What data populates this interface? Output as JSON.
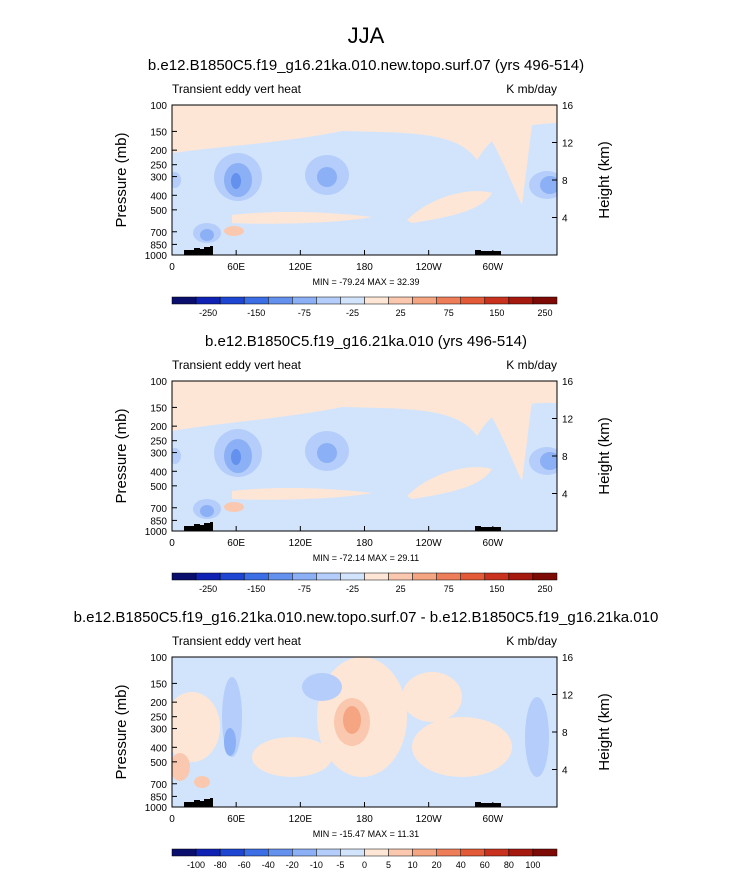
{
  "figure": {
    "title": "JJA"
  },
  "chart_data": [
    {
      "type": "heatmap",
      "title": "b.e12.B1850C5.f19_g16.21ka.010.new.topo.surf.07 (yrs 496-514)",
      "left_label": "Transient eddy vert heat",
      "right_label": "K mb/day",
      "ylabel": "Pressure (mb)",
      "ylabel_right": "Height (km)",
      "x_ticks": [
        "0",
        "60E",
        "120E",
        "180",
        "120W",
        "60W"
      ],
      "y_ticks": [
        "100",
        "150",
        "200",
        "250",
        "300",
        "400",
        "500",
        "700",
        "850",
        "1000"
      ],
      "y2_ticks": [
        "16",
        "12",
        "8",
        "4"
      ],
      "stats": "MIN = -79.24  MAX =  32.39",
      "colorbar_labels": [
        "-250",
        "-150",
        "-75",
        "-25",
        "25",
        "75",
        "150",
        "250"
      ],
      "colorbar_levels": [
        -300,
        -250,
        -200,
        -150,
        -100,
        -75,
        -50,
        -25,
        0,
        25,
        50,
        75,
        100,
        150,
        200,
        250,
        300
      ],
      "ylim": [
        1000,
        100
      ],
      "xlim": [
        0,
        360
      ]
    },
    {
      "type": "heatmap",
      "title": "b.e12.B1850C5.f19_g16.21ka.010 (yrs 496-514)",
      "left_label": "Transient eddy vert heat",
      "right_label": "K mb/day",
      "ylabel": "Pressure (mb)",
      "ylabel_right": "Height (km)",
      "x_ticks": [
        "0",
        "60E",
        "120E",
        "180",
        "120W",
        "60W"
      ],
      "y_ticks": [
        "100",
        "150",
        "200",
        "250",
        "300",
        "400",
        "500",
        "700",
        "850",
        "1000"
      ],
      "y2_ticks": [
        "16",
        "12",
        "8",
        "4"
      ],
      "stats": "MIN = -72.14  MAX =  29.11",
      "colorbar_labels": [
        "-250",
        "-150",
        "-75",
        "-25",
        "25",
        "75",
        "150",
        "250"
      ],
      "colorbar_levels": [
        -300,
        -250,
        -200,
        -150,
        -100,
        -75,
        -50,
        -25,
        0,
        25,
        50,
        75,
        100,
        150,
        200,
        250,
        300
      ],
      "ylim": [
        1000,
        100
      ],
      "xlim": [
        0,
        360
      ]
    },
    {
      "type": "heatmap",
      "title": "b.e12.B1850C5.f19_g16.21ka.010.new.topo.surf.07 - b.e12.B1850C5.f19_g16.21ka.010",
      "left_label": "Transient eddy vert heat",
      "right_label": "K mb/day",
      "ylabel": "Pressure (mb)",
      "ylabel_right": "Height (km)",
      "x_ticks": [
        "0",
        "60E",
        "120E",
        "180",
        "120W",
        "60W"
      ],
      "y_ticks": [
        "100",
        "150",
        "200",
        "250",
        "300",
        "400",
        "500",
        "700",
        "850",
        "1000"
      ],
      "y2_ticks": [
        "16",
        "12",
        "8",
        "4"
      ],
      "stats": "MIN = -15.47  MAX = 11.31",
      "colorbar_labels": [
        "-100",
        "-80",
        "-60",
        "-40",
        "-20",
        "-10",
        "-5",
        "0",
        "5",
        "10",
        "20",
        "40",
        "60",
        "80",
        "100"
      ],
      "colorbar_levels": [
        -100,
        -80,
        -60,
        -40,
        -20,
        -10,
        -5,
        0,
        5,
        10,
        20,
        40,
        60,
        80,
        100
      ],
      "ylim": [
        1000,
        100
      ],
      "xlim": [
        0,
        360
      ]
    }
  ],
  "colors": {
    "palette": [
      "#0a0f6e",
      "#0f22b4",
      "#1e46d2",
      "#3c6ee6",
      "#6491ee",
      "#8cb0f5",
      "#b4cdfa",
      "#d2e4fc",
      "#fde6d6",
      "#fac8af",
      "#f5a582",
      "#ee7d5a",
      "#e25a37",
      "#c8321e",
      "#a5190f",
      "#7d0a05"
    ],
    "light_blue": "#d2e4fc",
    "light_orange": "#fde6d6",
    "blue2": "#b4cdfa",
    "blue3": "#8cb0f5",
    "blue4": "#6491ee",
    "orange2": "#fac8af",
    "orange3": "#f5a582",
    "terrain": "#000000"
  }
}
